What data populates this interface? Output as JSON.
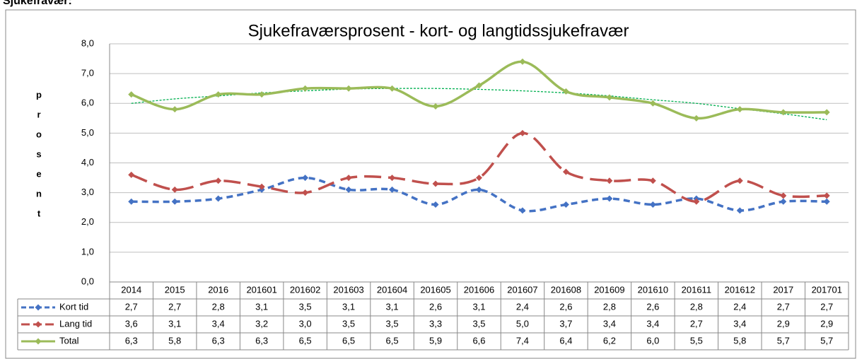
{
  "heading": "Sjukefravær:",
  "chart_data": {
    "type": "line",
    "title": "Sjukefraværsprosent    -    kort- og langtidssjukefravær",
    "ylabel": "prosent",
    "categories": [
      "2014",
      "2015",
      "2016",
      "201601",
      "201602",
      "201603",
      "201604",
      "201605",
      "201606",
      "201607",
      "201608",
      "201609",
      "201610",
      "201611",
      "201612",
      "2017",
      "201701"
    ],
    "ylim": [
      0,
      8
    ],
    "yticks": [
      {
        "value": 0,
        "label": "0,0"
      },
      {
        "value": 1,
        "label": "1,0"
      },
      {
        "value": 2,
        "label": "2,0"
      },
      {
        "value": 3,
        "label": "3,0"
      },
      {
        "value": 4,
        "label": "4,0"
      },
      {
        "value": 5,
        "label": "5,0"
      },
      {
        "value": 6,
        "label": "6,0"
      },
      {
        "value": 7,
        "label": "7,0"
      },
      {
        "value": 8,
        "label": "8,0"
      }
    ],
    "grid": true,
    "series": [
      {
        "name": "Kort tid",
        "color": "#4472c4",
        "dash": "9 6",
        "values": [
          2.7,
          2.7,
          2.8,
          3.1,
          3.5,
          3.1,
          3.1,
          2.6,
          3.1,
          2.4,
          2.6,
          2.8,
          2.6,
          2.8,
          2.4,
          2.7,
          2.7
        ],
        "value_labels": [
          "2,7",
          "2,7",
          "2,8",
          "3,1",
          "3,5",
          "3,1",
          "3,1",
          "2,6",
          "3,1",
          "2,4",
          "2,6",
          "2,8",
          "2,6",
          "2,8",
          "2,4",
          "2,7",
          "2,7"
        ]
      },
      {
        "name": "Lang tid",
        "color": "#c0504d",
        "dash": "24 10",
        "values": [
          3.6,
          3.1,
          3.4,
          3.2,
          3.0,
          3.5,
          3.5,
          3.3,
          3.5,
          5.0,
          3.7,
          3.4,
          3.4,
          2.7,
          3.4,
          2.9,
          2.9
        ],
        "value_labels": [
          "3,6",
          "3,1",
          "3,4",
          "3,2",
          "3,0",
          "3,5",
          "3,5",
          "3,3",
          "3,5",
          "5,0",
          "3,7",
          "3,4",
          "3,4",
          "2,7",
          "3,4",
          "2,9",
          "2,9"
        ]
      },
      {
        "name": "Total",
        "color": "#9bbb59",
        "dash": "none",
        "values": [
          6.3,
          5.8,
          6.3,
          6.3,
          6.5,
          6.5,
          6.5,
          5.9,
          6.6,
          7.4,
          6.4,
          6.2,
          6.0,
          5.5,
          5.8,
          5.7,
          5.7
        ],
        "value_labels": [
          "6,3",
          "5,8",
          "6,3",
          "6,3",
          "6,5",
          "6,5",
          "6,5",
          "5,9",
          "6,6",
          "7,4",
          "6,4",
          "6,2",
          "6,0",
          "5,5",
          "5,8",
          "5,7",
          "5,7"
        ]
      }
    ],
    "trendline": {
      "color": "#00b050",
      "values": [
        6.0,
        6.15,
        6.25,
        6.35,
        6.42,
        6.48,
        6.5,
        6.5,
        6.47,
        6.42,
        6.35,
        6.25,
        6.12,
        6.0,
        5.82,
        5.65,
        5.45
      ]
    }
  }
}
